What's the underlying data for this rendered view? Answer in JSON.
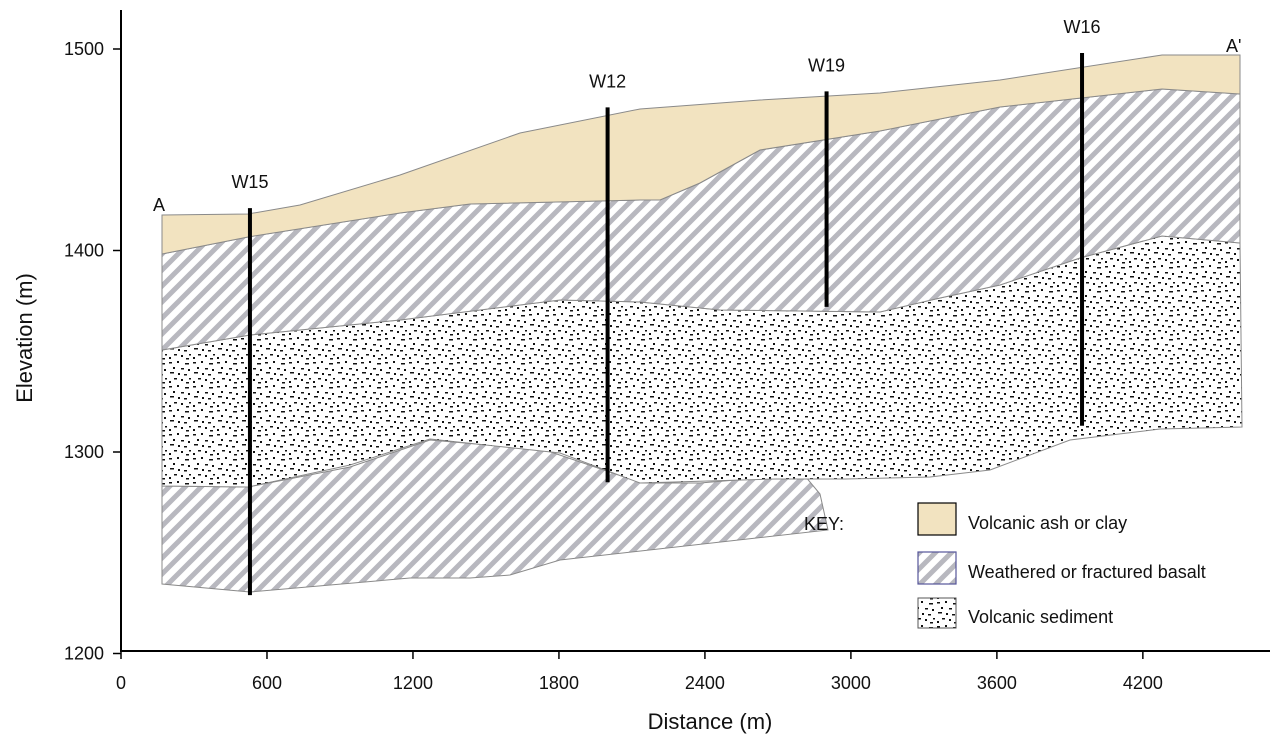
{
  "diagram": {
    "xlabel": "Distance (m)",
    "ylabel": "Elevation (m)",
    "x_ticks": [
      "0",
      "600",
      "1200",
      "1800",
      "2400",
      "3000",
      "3600",
      "4200"
    ],
    "y_ticks": [
      "1500",
      "1400",
      "1300",
      "1200"
    ],
    "section_start_label": "A",
    "section_end_label": "A'",
    "wells": [
      {
        "name": "W15",
        "distance": 530,
        "top_elevation": 1421,
        "bottom_elevation": 1229
      },
      {
        "name": "W12",
        "distance": 2000,
        "top_elevation": 1471,
        "bottom_elevation": 1285
      },
      {
        "name": "W19",
        "distance": 2900,
        "top_elevation": 1479,
        "bottom_elevation": 1372
      },
      {
        "name": "W16",
        "distance": 3950,
        "top_elevation": 1498,
        "bottom_elevation": 1313
      }
    ],
    "key": {
      "title": "KEY:",
      "items": [
        {
          "label": "Volcanic ash or clay",
          "pattern": "ash",
          "color": "#f2e3c0"
        },
        {
          "label": "Weathered or fractured basalt",
          "pattern": "basalt",
          "color": "#c8c8c8"
        },
        {
          "label": "Volcanic sediment",
          "pattern": "sediment",
          "color": "#111111"
        }
      ]
    },
    "colors": {
      "ash": "#f2e3c0",
      "basalt_hatch": "#b8b8bf",
      "sediment_dots": "#111111",
      "layer_edge": "#8a8a8a"
    }
  }
}
